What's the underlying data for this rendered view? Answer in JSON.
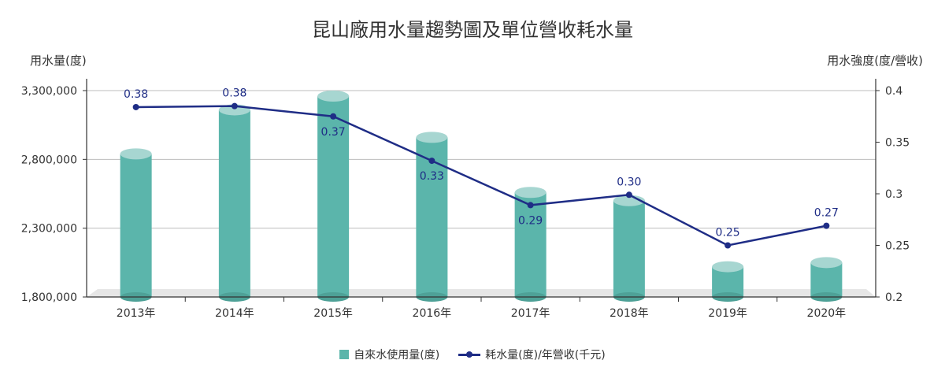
{
  "chart_data": {
    "type": "bar",
    "title": "昆山廠用水量趨勢圖及單位營收耗水量",
    "categories": [
      "2013年",
      "2014年",
      "2015年",
      "2016年",
      "2017年",
      "2018年",
      "2019年",
      "2020年"
    ],
    "series": [
      {
        "name": "自來水使用量(度)",
        "type": "bar",
        "axis": "left",
        "color": "#5bb5ab",
        "values": [
          2840000,
          3160000,
          3260000,
          2960000,
          2560000,
          2500000,
          2020000,
          2050000
        ]
      },
      {
        "name": "耗水量(度)/年營收(千元)",
        "type": "line",
        "axis": "right",
        "color": "#1f2d86",
        "values": [
          0.384,
          0.385,
          0.375,
          0.332,
          0.289,
          0.299,
          0.25,
          0.269
        ],
        "labels": [
          "0.38",
          "0.38",
          "0.37",
          "0.33",
          "0.29",
          "0.30",
          "0.25",
          "0.27"
        ]
      }
    ],
    "y_left": {
      "label": "用水量(度)",
      "min": 1800000,
      "max": 3300000,
      "ticks": [
        1800000,
        2300000,
        2800000,
        3300000
      ],
      "tick_labels": [
        "1,800,000",
        "2,300,000",
        "2,800,000",
        "3,300,000"
      ]
    },
    "y_right": {
      "label": "用水強度(度/營收)",
      "min": 0.2,
      "max": 0.4,
      "ticks": [
        0.2,
        0.25,
        0.3,
        0.35,
        0.4
      ],
      "tick_labels": [
        "0.2",
        "0.25",
        "0.3",
        "0.35",
        "0.4"
      ]
    },
    "grid": true,
    "legend": "bottom-center"
  }
}
